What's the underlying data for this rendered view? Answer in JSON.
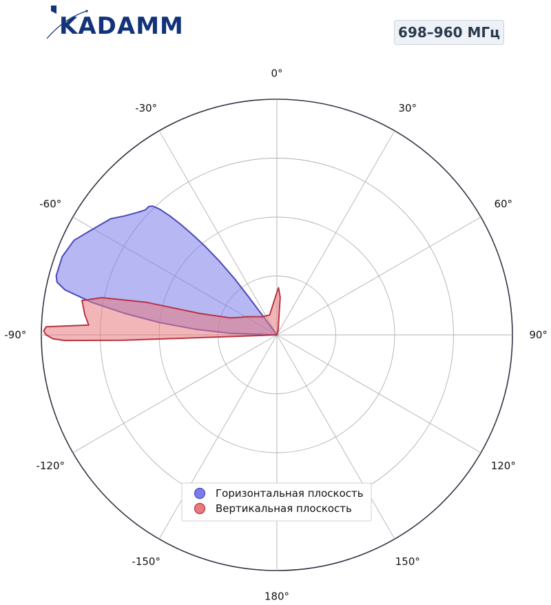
{
  "header": {
    "brand": "KADAMM",
    "frequency_label": "698–960 МГц"
  },
  "colors": {
    "brand": "#12337a",
    "horizontal_fill": "#7b7bea",
    "horizontal_edge": "#4a47b8",
    "vertical_fill": "#e87a80",
    "vertical_edge": "#b8323f",
    "grid": "#b0b0b0",
    "outer_ring": "#333344"
  },
  "chart_data": {
    "type": "polar-area",
    "title": "",
    "theta_direction": "clockwise",
    "theta_zero": "top",
    "theta_ticks": [
      0,
      30,
      60,
      90,
      120,
      150,
      180,
      -150,
      -120,
      -90,
      -60,
      -30
    ],
    "theta_tick_labels": [
      "0°",
      "30°",
      "60°",
      "90°",
      "120°",
      "150°",
      "180°",
      "-150°",
      "-120°",
      "-90°",
      "-60°",
      "-30°"
    ],
    "r_range": [
      0,
      1
    ],
    "r_grid": [
      0.25,
      0.5,
      0.75,
      1.0
    ],
    "r_tick_labels_shown": false,
    "grid": true,
    "legend_position": "bottom-center",
    "series": [
      {
        "name": "Горизонтальная плоскость",
        "color": "#7b7bea",
        "points": [
          {
            "theta": -36.0,
            "r": 0.06
          },
          {
            "theta": -36.6,
            "r": 0.2
          },
          {
            "theta": -37.0,
            "r": 0.3
          },
          {
            "theta": -38.0,
            "r": 0.4
          },
          {
            "theta": -39.0,
            "r": 0.48
          },
          {
            "theta": -40.0,
            "r": 0.55
          },
          {
            "theta": -41.0,
            "r": 0.62
          },
          {
            "theta": -42.0,
            "r": 0.68
          },
          {
            "theta": -43.0,
            "r": 0.73
          },
          {
            "theta": -44.0,
            "r": 0.76
          },
          {
            "theta": -45.0,
            "r": 0.77
          },
          {
            "theta": -46.5,
            "r": 0.77
          },
          {
            "theta": -49.0,
            "r": 0.79
          },
          {
            "theta": -52.0,
            "r": 0.82
          },
          {
            "theta": -55.0,
            "r": 0.86
          },
          {
            "theta": -60.0,
            "r": 0.9
          },
          {
            "theta": -65.0,
            "r": 0.95
          },
          {
            "theta": -70.0,
            "r": 0.97
          },
          {
            "theta": -75.0,
            "r": 0.97
          },
          {
            "theta": -76.5,
            "r": 0.96
          },
          {
            "theta": -78.0,
            "r": 0.92
          },
          {
            "theta": -80.0,
            "r": 0.8
          },
          {
            "theta": -82.0,
            "r": 0.65
          },
          {
            "theta": -84.0,
            "r": 0.5
          },
          {
            "theta": -86.0,
            "r": 0.35
          },
          {
            "theta": -88.0,
            "r": 0.2
          },
          {
            "theta": -90.0,
            "r": 0.0
          }
        ]
      },
      {
        "name": "Вертикальная плоскость",
        "color": "#e87a80",
        "points": [
          {
            "theta": -87.0,
            "r": 0.8
          },
          {
            "theta": -84.0,
            "r": 0.82
          },
          {
            "theta": -80.0,
            "r": 0.84
          },
          {
            "theta": -78.0,
            "r": 0.76
          },
          {
            "theta": -76.0,
            "r": 0.57
          },
          {
            "theta": -74.5,
            "r": 0.34
          },
          {
            "theta": -70.0,
            "r": 0.21
          },
          {
            "theta": -64.0,
            "r": 0.17
          },
          {
            "theta": -59.0,
            "r": 0.15
          },
          {
            "theta": -50.0,
            "r": 0.12
          },
          {
            "theta": -40.0,
            "r": 0.1
          },
          {
            "theta": -20.0,
            "r": 0.09
          },
          {
            "theta": 0.0,
            "r": 0.18
          },
          {
            "theta": 2.0,
            "r": 0.2
          },
          {
            "theta": 5.0,
            "r": 0.16
          },
          {
            "theta": 15.0,
            "r": 0.02
          },
          {
            "theta": 90.0,
            "r": 0.0
          },
          {
            "theta": 180.0,
            "r": 0.0
          },
          {
            "theta": -100.0,
            "r": 0.0
          },
          {
            "theta": -92.0,
            "r": 0.65
          },
          {
            "theta": -91.5,
            "r": 0.9
          },
          {
            "theta": -91.0,
            "r": 0.95
          },
          {
            "theta": -90.0,
            "r": 0.98
          },
          {
            "theta": -89.0,
            "r": 0.99
          },
          {
            "theta": -88.0,
            "r": 0.98
          },
          {
            "theta": -87.0,
            "r": 0.8
          }
        ]
      }
    ]
  }
}
